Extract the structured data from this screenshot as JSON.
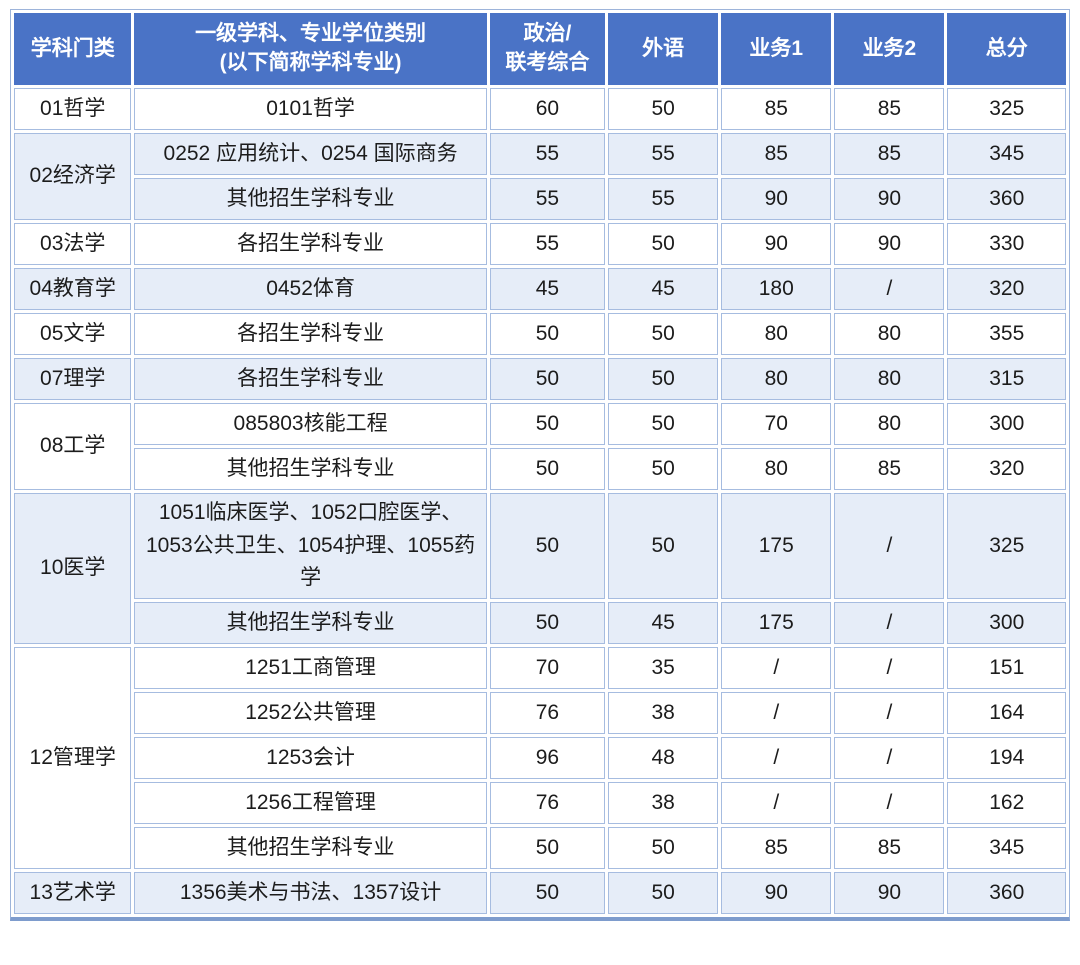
{
  "table": {
    "header": {
      "col_category": "学科门类",
      "col_major_line1": "一级学科、专业学位类别",
      "col_major_line2": "(以下简称学科专业)",
      "col_politics_line1": "政治/",
      "col_politics_line2": "联考综合",
      "col_foreign": "外语",
      "col_business1": "业务1",
      "col_business2": "业务2",
      "col_total": "总分"
    },
    "groups": [
      {
        "category": "01哲学",
        "shaded": false,
        "rows": [
          {
            "major": "0101哲学",
            "politics": "60",
            "foreign": "50",
            "business1": "85",
            "business2": "85",
            "total": "325"
          }
        ]
      },
      {
        "category": "02经济学",
        "shaded": true,
        "rows": [
          {
            "major": "0252 应用统计、0254 国际商务",
            "politics": "55",
            "foreign": "55",
            "business1": "85",
            "business2": "85",
            "total": "345"
          },
          {
            "major": "其他招生学科专业",
            "politics": "55",
            "foreign": "55",
            "business1": "90",
            "business2": "90",
            "total": "360"
          }
        ]
      },
      {
        "category": "03法学",
        "shaded": false,
        "rows": [
          {
            "major": "各招生学科专业",
            "politics": "55",
            "foreign": "50",
            "business1": "90",
            "business2": "90",
            "total": "330"
          }
        ]
      },
      {
        "category": "04教育学",
        "shaded": true,
        "rows": [
          {
            "major": "0452体育",
            "politics": "45",
            "foreign": "45",
            "business1": "180",
            "business2": "/",
            "total": "320"
          }
        ]
      },
      {
        "category": "05文学",
        "shaded": false,
        "rows": [
          {
            "major": "各招生学科专业",
            "politics": "50",
            "foreign": "50",
            "business1": "80",
            "business2": "80",
            "total": "355"
          }
        ]
      },
      {
        "category": "07理学",
        "shaded": true,
        "rows": [
          {
            "major": "各招生学科专业",
            "politics": "50",
            "foreign": "50",
            "business1": "80",
            "business2": "80",
            "total": "315"
          }
        ]
      },
      {
        "category": "08工学",
        "shaded": false,
        "rows": [
          {
            "major": "085803核能工程",
            "politics": "50",
            "foreign": "50",
            "business1": "70",
            "business2": "80",
            "total": "300"
          },
          {
            "major": "其他招生学科专业",
            "politics": "50",
            "foreign": "50",
            "business1": "80",
            "business2": "85",
            "total": "320"
          }
        ]
      },
      {
        "category": "10医学",
        "shaded": true,
        "rows": [
          {
            "major": "1051临床医学、1052口腔医学、1053公共卫生、1054护理、1055药学",
            "politics": "50",
            "foreign": "50",
            "business1": "175",
            "business2": "/",
            "total": "325",
            "tall": true
          },
          {
            "major": "其他招生学科专业",
            "politics": "50",
            "foreign": "45",
            "business1": "175",
            "business2": "/",
            "total": "300"
          }
        ]
      },
      {
        "category": "12管理学",
        "shaded": false,
        "rows": [
          {
            "major": "1251工商管理",
            "politics": "70",
            "foreign": "35",
            "business1": "/",
            "business2": "/",
            "total": "151"
          },
          {
            "major": "1252公共管理",
            "politics": "76",
            "foreign": "38",
            "business1": "/",
            "business2": "/",
            "total": "164"
          },
          {
            "major": "1253会计",
            "politics": "96",
            "foreign": "48",
            "business1": "/",
            "business2": "/",
            "total": "194"
          },
          {
            "major": "1256工程管理",
            "politics": "76",
            "foreign": "38",
            "business1": "/",
            "business2": "/",
            "total": "162"
          },
          {
            "major": "其他招生学科专业",
            "politics": "50",
            "foreign": "50",
            "business1": "85",
            "business2": "85",
            "total": "345"
          }
        ]
      },
      {
        "category": "13艺术学",
        "shaded": true,
        "rows": [
          {
            "major": "1356美术与书法、1357设计",
            "politics": "50",
            "foreign": "50",
            "business1": "90",
            "business2": "90",
            "total": "360"
          }
        ]
      }
    ],
    "colors": {
      "header_bg": "#4a73c6",
      "shaded_row_bg": "#e6edf8",
      "grid_line": "#a6bce0",
      "outer_border": "#9db4da",
      "bottom_border": "#7e9ccd",
      "header_text": "#ffffff",
      "body_text": "#1c1c1c"
    }
  }
}
